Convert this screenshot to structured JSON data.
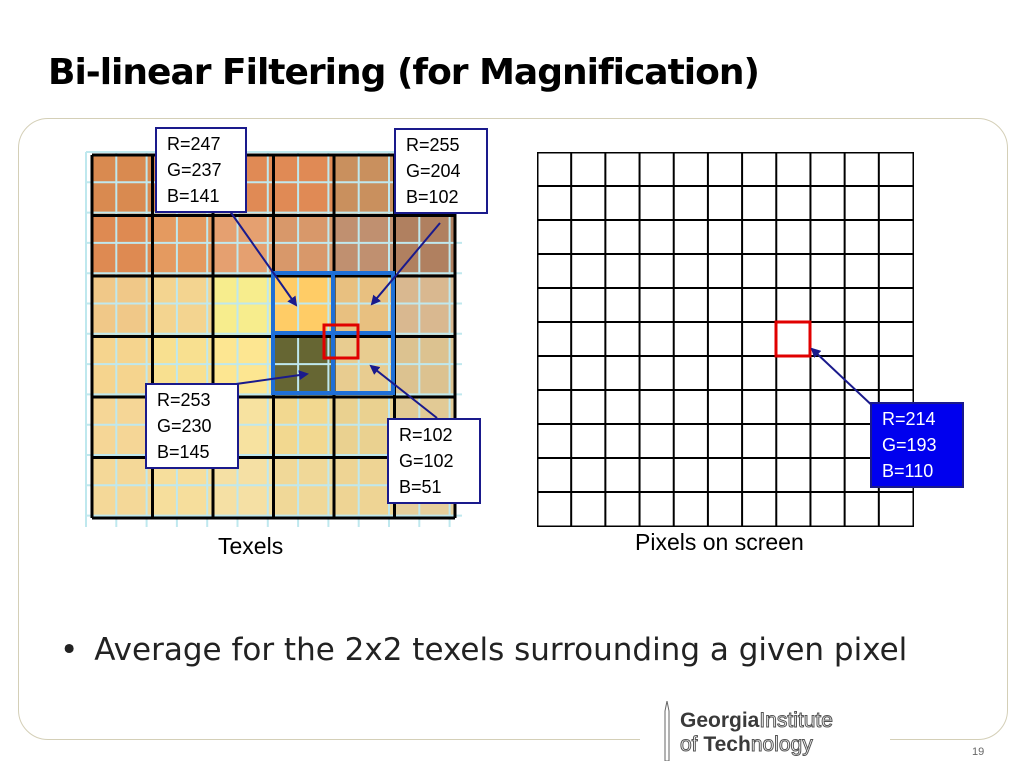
{
  "slide": {
    "title": "Bi-linear Filtering (for Magnification)",
    "bullet": "Average for the 2x2 texels surrounding a given pixel",
    "page_number": "19"
  },
  "diagram": {
    "texels_label": "Texels",
    "pixels_label": "Pixels on screen",
    "callouts": {
      "top_left": {
        "r": "R=247",
        "g": "G=237",
        "b": "B=141"
      },
      "top_right": {
        "r": "R=255",
        "g": "G=204",
        "b": "B=102"
      },
      "bottom_left": {
        "r": "R=253",
        "g": "G=230",
        "b": "B=145"
      },
      "bottom_right": {
        "r": "R=102",
        "g": "G=102",
        "b": "B=51"
      },
      "result": {
        "r": "R=214",
        "g": "G=193",
        "b": "B=110"
      }
    },
    "texel_colors": [
      [
        "#d98a50",
        "#d98a50",
        "#e08a55",
        "#e08a55",
        "#c9905e",
        "#c9905e"
      ],
      [
        "#de8a52",
        "#e49a60",
        "#e5a070",
        "#d8986a",
        "#c09070",
        "#b08060"
      ],
      [
        "#f0c888",
        "#f3d490",
        "#f7ed8d",
        "#ffcc66",
        "#e8c080",
        "#d9b890"
      ],
      [
        "#f5d48e",
        "#f8e090",
        "#fde691",
        "#666633",
        "#e8cc90",
        "#dcc290"
      ],
      [
        "#f5d696",
        "#f8e098",
        "#f7e2a0",
        "#f2d890",
        "#ead190",
        "#e2ca95"
      ],
      [
        "#f4d898",
        "#f6de9c",
        "#f5e0a4",
        "#f0d898",
        "#eed494",
        "#e6cf9c"
      ]
    ],
    "colors": {
      "texel_grid": "#000000",
      "fine_grid": "#bfe8ee",
      "highlight_box": "#1f6fd6",
      "sample_marker": "#e00000",
      "arrow": "#1a1a8c",
      "result_box": "#0000ee"
    }
  },
  "logo": {
    "line1_a": "Georgia",
    "line1_b": "Institute",
    "line2_a": "of ",
    "line2_b": "Tech",
    "line2_c": "nology"
  }
}
